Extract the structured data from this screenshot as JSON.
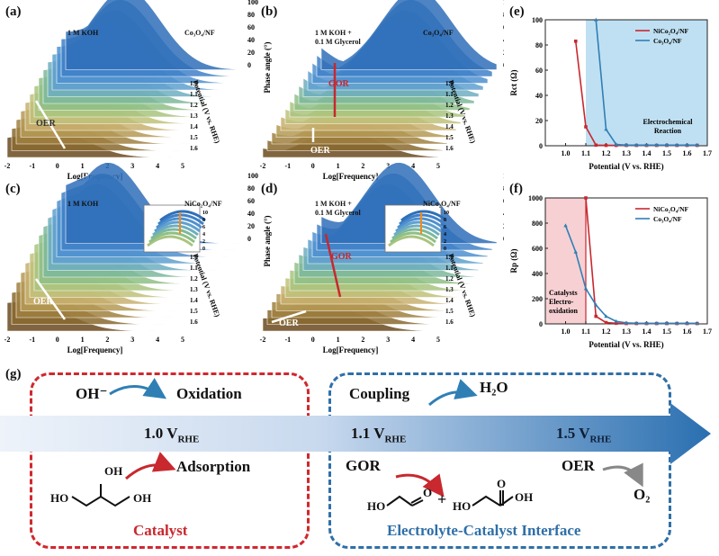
{
  "labels": {
    "a": "(a)",
    "b": "(b)",
    "c": "(c)",
    "d": "(d)",
    "e": "(e)",
    "f": "(f)",
    "g": "(g)"
  },
  "panels": {
    "a": {
      "cond": "1 M KOH",
      "cond2": "",
      "cat": "Co₃O₄/NF",
      "arrow": "OER"
    },
    "b": {
      "cond": "1 M KOH +",
      "cond2": "0.1 M Glycerol",
      "cat": "Co₃O₄/NF",
      "arrow": "GOR",
      "arrow2": "OER"
    },
    "c": {
      "cond": "1 M KOH",
      "cond2": "",
      "cat": "NiCo₂O₄/NF",
      "arrow": "OER"
    },
    "d": {
      "cond": "1 M KOH +",
      "cond2": "0.1 M Glycerol",
      "cat": "NiCo₂O₄/NF",
      "arrow": "GOR",
      "arrow2": "OER"
    }
  },
  "axes3d": {
    "xlabel": "Log[Frequency]",
    "xticks": [
      "-2",
      "-1",
      "0",
      "1",
      "2",
      "3",
      "4",
      "5"
    ],
    "zlabel": "Phase angle (°)",
    "zticks": [
      "0",
      "20",
      "40",
      "60",
      "80",
      "100"
    ],
    "ylabel": "Potential (V vs. RHE)",
    "yticks": [
      "1.0",
      "1.1",
      "1.2",
      "1.3",
      "1.4",
      "1.5",
      "1.6"
    ],
    "inset_ticks": [
      "0",
      "2",
      "4",
      "6",
      "8",
      "10"
    ]
  },
  "chart_data": [
    {
      "type": "line",
      "panel": "e",
      "xlabel": "Potential (V vs. RHE)",
      "ylabel": "Rct (Ω)",
      "xlim": [
        0.9,
        1.7
      ],
      "ylim": [
        0,
        100
      ],
      "xticks": [
        "1.0",
        "1.1",
        "1.2",
        "1.3",
        "1.4",
        "1.5",
        "1.6",
        "1.7"
      ],
      "yticks": [
        "0",
        "20",
        "40",
        "60",
        "80",
        "100"
      ],
      "annotation": "Electrochemical Reaction",
      "series": [
        {
          "name": "NiCo₂O₄/NF",
          "color": "#c8282e",
          "x": [
            1.05,
            1.1,
            1.15,
            1.2,
            1.25,
            1.3,
            1.35,
            1.4,
            1.45,
            1.5,
            1.55,
            1.6,
            1.65
          ],
          "y": [
            83,
            15,
            0.5,
            0.3,
            0.3,
            0.3,
            0.3,
            0.3,
            0.3,
            0.3,
            0.3,
            0.3,
            0.3
          ]
        },
        {
          "name": "Co₃O₄/NF",
          "color": "#2f7fb5",
          "x": [
            1.15,
            1.2,
            1.25,
            1.3,
            1.35,
            1.4,
            1.45,
            1.5,
            1.55,
            1.6,
            1.65
          ],
          "y": [
            100,
            13,
            1,
            0.5,
            0.5,
            0.5,
            0.5,
            0.5,
            0.5,
            0.5,
            0.5
          ]
        }
      ]
    },
    {
      "type": "line",
      "panel": "f",
      "xlabel": "Potential (V vs. RHE)",
      "ylabel": "Rp (Ω)",
      "xlim": [
        0.9,
        1.7
      ],
      "ylim": [
        0,
        1000
      ],
      "xticks": [
        "1.0",
        "1.1",
        "1.2",
        "1.3",
        "1.4",
        "1.5",
        "1.6",
        "1.7"
      ],
      "yticks": [
        "0",
        "200",
        "400",
        "600",
        "800",
        "1000"
      ],
      "annotation": [
        "Catalysts",
        "Electro-",
        "oxidation"
      ],
      "series": [
        {
          "name": "NiCo₂O₄/NF",
          "color": "#c8282e",
          "x": [
            1.1,
            1.15,
            1.2,
            1.25,
            1.3,
            1.35,
            1.4,
            1.45,
            1.5,
            1.55,
            1.6,
            1.65
          ],
          "y": [
            1000,
            60,
            10,
            5,
            3,
            3,
            3,
            3,
            3,
            3,
            3,
            3
          ]
        },
        {
          "name": "Co₃O₄/NF",
          "color": "#2f7fb5",
          "x": [
            1.0,
            1.05,
            1.1,
            1.15,
            1.2,
            1.25,
            1.3,
            1.35,
            1.4,
            1.45,
            1.5,
            1.55,
            1.6,
            1.65
          ],
          "y": [
            780,
            570,
            280,
            150,
            60,
            20,
            8,
            5,
            4,
            4,
            4,
            4,
            4,
            4
          ]
        }
      ]
    }
  ],
  "scheme": {
    "oh": "OH⁻",
    "oxidation": "Oxidation",
    "adsorption": "Adsorption",
    "coupling": "Coupling",
    "h2o": "H₂O",
    "v1": "1.0 V",
    "v2": "1.1 V",
    "v3": "1.5 V",
    "vsub": "RHE",
    "gor": "GOR",
    "oer": "OER",
    "o2": "O₂",
    "catalyst": "Catalyst",
    "interface": "Electrolyte-Catalyst  Interface",
    "ho": "HO",
    "oh_l": "OH",
    "plus": "+",
    "ho2": "HO",
    "o": "O",
    "oh2": "OH"
  },
  "colors": {
    "red": "#c8282e",
    "blue": "#2f7fb5",
    "band_dark": "#2a6fb0",
    "band_light": "#dbe7f4"
  }
}
